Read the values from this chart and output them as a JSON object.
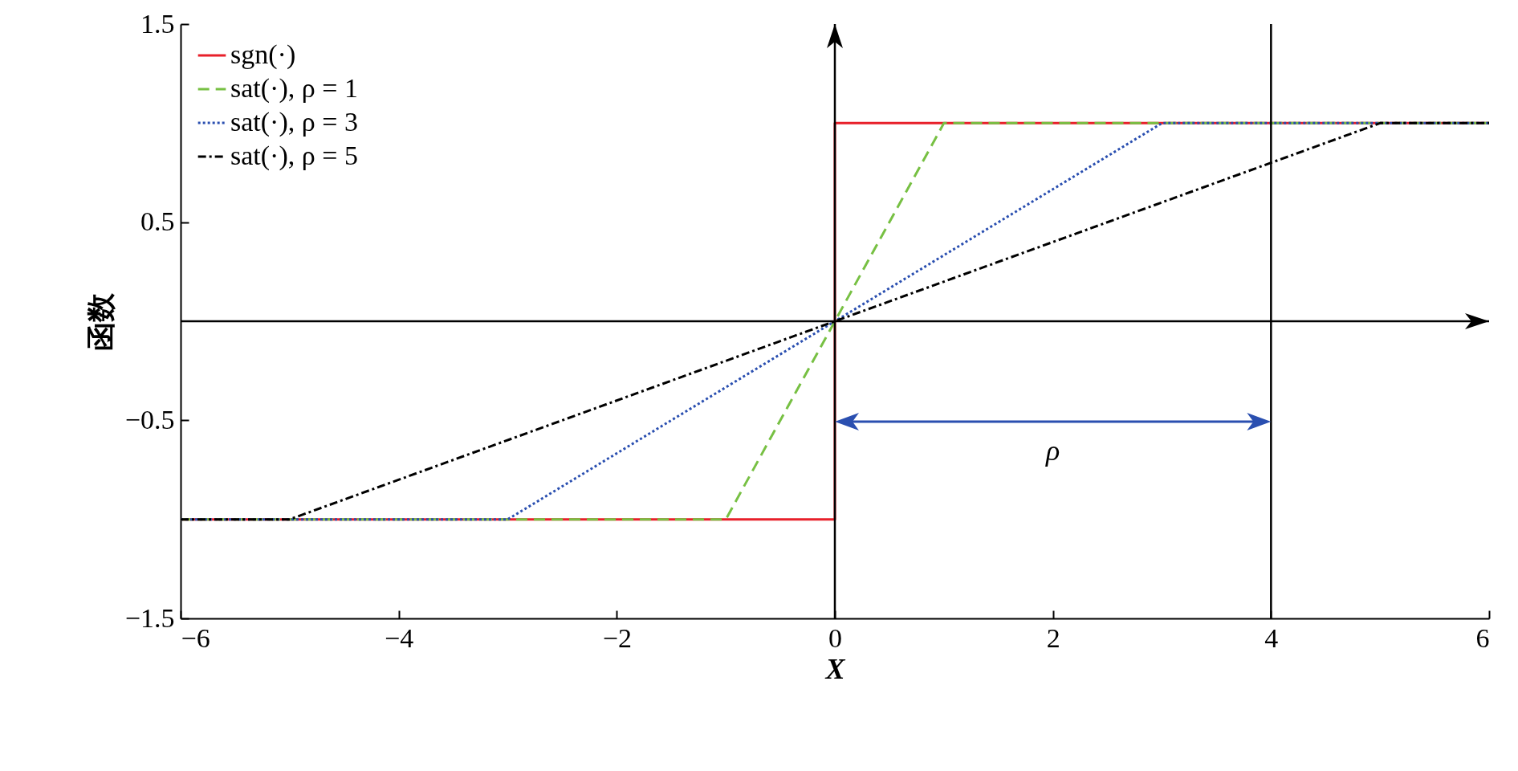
{
  "chart_data": {
    "type": "line",
    "xlabel": "X",
    "ylabel": "函数",
    "xlim": [
      -6,
      6
    ],
    "xticks": [
      -6,
      -4,
      -2,
      0,
      2,
      4,
      6
    ],
    "ylim": [
      -1.5,
      1.5
    ],
    "yticks": [
      -1.5,
      -0.5,
      0.5,
      1.5
    ],
    "grid": false,
    "legend": "top left",
    "marker": "none",
    "series": [
      {
        "name": "sgn(·)",
        "color": "#e8202a",
        "line_style": "solid",
        "x": [
          -6,
          0,
          0,
          6
        ],
        "values": [
          -1,
          -1,
          1,
          1
        ]
      },
      {
        "name": "sat(·), ρ = 1",
        "color": "#77c043",
        "line_style": "dashed",
        "x": [
          -6,
          -1,
          1,
          6
        ],
        "values": [
          -1,
          -1,
          1,
          1
        ]
      },
      {
        "name": "sat(·), ρ = 3",
        "color": "#2a4fb0",
        "line_style": "dotted",
        "x": [
          -6,
          -3,
          3,
          6
        ],
        "values": [
          -1,
          -1,
          1,
          1
        ]
      },
      {
        "name": "sat(·), ρ = 5",
        "color": "#000000",
        "line_style": "dashdot",
        "x": [
          -6,
          -5,
          5,
          6
        ],
        "values": [
          -1,
          -1,
          1,
          1
        ]
      }
    ],
    "ref_lines": [
      {
        "axis": "y",
        "value": 0,
        "color": "#000000"
      },
      {
        "axis": "x",
        "value": 0,
        "color": "#000000"
      },
      {
        "axis": "x",
        "value": 4,
        "color": "#000000"
      }
    ],
    "annotations": [
      "ρ"
    ]
  }
}
